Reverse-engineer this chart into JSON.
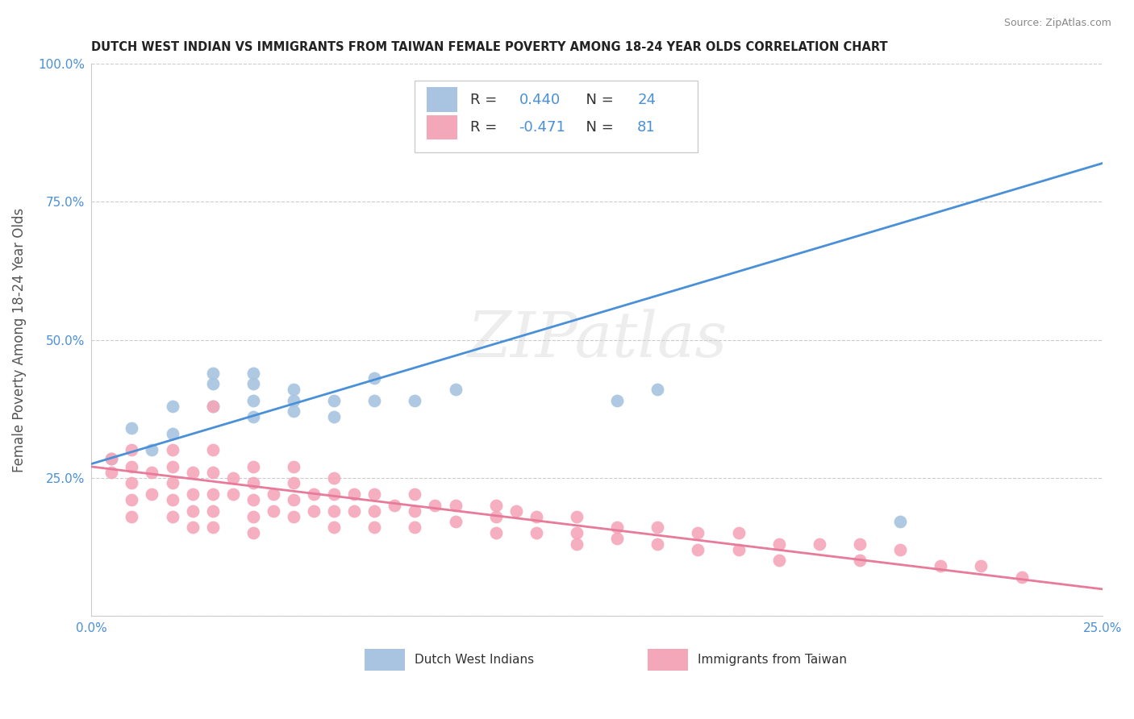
{
  "title": "DUTCH WEST INDIAN VS IMMIGRANTS FROM TAIWAN FEMALE POVERTY AMONG 18-24 YEAR OLDS CORRELATION CHART",
  "source": "Source: ZipAtlas.com",
  "ylabel": "Female Poverty Among 18-24 Year Olds",
  "xlim": [
    0.0,
    0.25
  ],
  "ylim": [
    0.0,
    1.0
  ],
  "xticks": [
    0.0,
    0.05,
    0.1,
    0.15,
    0.2,
    0.25
  ],
  "yticks": [
    0.0,
    0.25,
    0.5,
    0.75,
    1.0
  ],
  "blue_label": "Dutch West Indians",
  "pink_label": "Immigrants from Taiwan",
  "blue_R": 0.44,
  "blue_N": 24,
  "pink_R": -0.471,
  "pink_N": 81,
  "blue_color": "#a8c4e0",
  "pink_color": "#f4a7b9",
  "blue_line_color": "#4a90d9",
  "pink_line_color": "#e87a9a",
  "stat_color": "#4a90d9",
  "watermark": "ZIPatlas",
  "blue_scatter_x": [
    0.005,
    0.01,
    0.015,
    0.02,
    0.02,
    0.03,
    0.03,
    0.03,
    0.04,
    0.04,
    0.04,
    0.04,
    0.05,
    0.05,
    0.05,
    0.06,
    0.06,
    0.07,
    0.07,
    0.08,
    0.09,
    0.13,
    0.14,
    0.2
  ],
  "blue_scatter_y": [
    0.285,
    0.34,
    0.3,
    0.33,
    0.38,
    0.38,
    0.42,
    0.44,
    0.36,
    0.39,
    0.42,
    0.44,
    0.37,
    0.39,
    0.41,
    0.36,
    0.39,
    0.39,
    0.43,
    0.39,
    0.41,
    0.39,
    0.41,
    0.17
  ],
  "pink_scatter_x": [
    0.005,
    0.005,
    0.01,
    0.01,
    0.01,
    0.01,
    0.01,
    0.015,
    0.015,
    0.02,
    0.02,
    0.02,
    0.02,
    0.02,
    0.025,
    0.025,
    0.025,
    0.025,
    0.03,
    0.03,
    0.03,
    0.03,
    0.03,
    0.03,
    0.035,
    0.035,
    0.04,
    0.04,
    0.04,
    0.04,
    0.04,
    0.045,
    0.045,
    0.05,
    0.05,
    0.05,
    0.05,
    0.055,
    0.055,
    0.06,
    0.06,
    0.06,
    0.06,
    0.065,
    0.065,
    0.07,
    0.07,
    0.07,
    0.075,
    0.08,
    0.08,
    0.08,
    0.085,
    0.09,
    0.09,
    0.1,
    0.1,
    0.1,
    0.105,
    0.11,
    0.11,
    0.12,
    0.12,
    0.12,
    0.13,
    0.13,
    0.14,
    0.14,
    0.15,
    0.15,
    0.16,
    0.16,
    0.17,
    0.17,
    0.18,
    0.19,
    0.19,
    0.2,
    0.21,
    0.22,
    0.23
  ],
  "pink_scatter_y": [
    0.285,
    0.26,
    0.3,
    0.27,
    0.24,
    0.21,
    0.18,
    0.26,
    0.22,
    0.3,
    0.27,
    0.24,
    0.21,
    0.18,
    0.26,
    0.22,
    0.19,
    0.16,
    0.38,
    0.3,
    0.26,
    0.22,
    0.19,
    0.16,
    0.25,
    0.22,
    0.27,
    0.24,
    0.21,
    0.18,
    0.15,
    0.22,
    0.19,
    0.27,
    0.24,
    0.21,
    0.18,
    0.22,
    0.19,
    0.25,
    0.22,
    0.19,
    0.16,
    0.22,
    0.19,
    0.22,
    0.19,
    0.16,
    0.2,
    0.22,
    0.19,
    0.16,
    0.2,
    0.2,
    0.17,
    0.2,
    0.18,
    0.15,
    0.19,
    0.18,
    0.15,
    0.18,
    0.15,
    0.13,
    0.16,
    0.14,
    0.16,
    0.13,
    0.15,
    0.12,
    0.15,
    0.12,
    0.13,
    0.1,
    0.13,
    0.13,
    0.1,
    0.12,
    0.09,
    0.09,
    0.07
  ],
  "blue_line_x": [
    0.0,
    0.25
  ],
  "blue_line_y": [
    0.275,
    0.82
  ],
  "pink_line_x": [
    0.0,
    0.25
  ],
  "pink_line_y": [
    0.27,
    0.048
  ]
}
